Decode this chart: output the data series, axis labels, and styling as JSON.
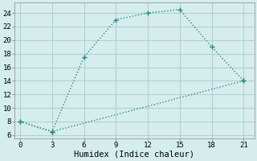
{
  "xlabel": "Humidex (Indice chaleur)",
  "bg_color": "#d5eded",
  "grid_color": "#b2d0d0",
  "line_color": "#2e8b7a",
  "line1_x": [
    0,
    3,
    6,
    9,
    12,
    15,
    18,
    21
  ],
  "line1_y": [
    8,
    6.5,
    17.5,
    23,
    24,
    24.5,
    19,
    14
  ],
  "line2_x": [
    0,
    3,
    21
  ],
  "line2_y": [
    8,
    6.5,
    14
  ],
  "xlim": [
    -0.5,
    22
  ],
  "ylim": [
    5.5,
    25.5
  ],
  "xticks": [
    0,
    3,
    6,
    9,
    12,
    15,
    18,
    21
  ],
  "yticks": [
    6,
    8,
    10,
    12,
    14,
    16,
    18,
    20,
    22,
    24
  ],
  "tick_fontsize": 6.5,
  "label_fontsize": 7.5
}
